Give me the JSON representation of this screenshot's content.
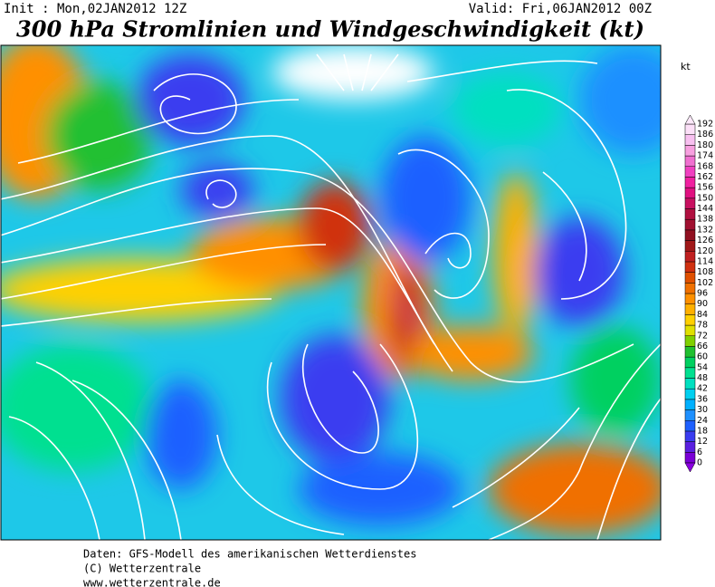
{
  "header": {
    "init": "Init : Mon,02JAN2012 12Z",
    "valid": "Valid: Fri,06JAN2012 00Z",
    "title": "300 hPa Stromlinien und Windgeschwindigkeit (kt)"
  },
  "colorbar": {
    "unit": "kt",
    "labels": [
      0,
      6,
      12,
      18,
      24,
      30,
      36,
      42,
      48,
      54,
      60,
      66,
      72,
      78,
      84,
      90,
      96,
      102,
      108,
      114,
      120,
      126,
      132,
      138,
      144,
      150,
      156,
      162,
      168,
      174,
      180,
      186,
      192
    ],
    "colors": [
      "#7a00d6",
      "#5a1fe0",
      "#3a3cf0",
      "#1e60ff",
      "#1e90ff",
      "#00b0ff",
      "#00d0f0",
      "#00e0c0",
      "#00e090",
      "#00d060",
      "#20c030",
      "#80d000",
      "#e0e000",
      "#ffd000",
      "#ffb000",
      "#ff9000",
      "#f07000",
      "#e05000",
      "#d03010",
      "#c02020",
      "#a01818",
      "#901020",
      "#a01030",
      "#b01040",
      "#c81060",
      "#e01080",
      "#f020a0",
      "#f040c0",
      "#f070d0",
      "#f8a0e0",
      "#f8c0f0",
      "#fce0f8"
    ],
    "under_color": "#8a00e0",
    "over_color": "#fce8fa"
  },
  "footer": {
    "lines": [
      "Daten: GFS-Modell des amerikanischen Wetterdienstes",
      "(C) Wetterzentrale",
      "www.wetterzentrale.de"
    ]
  }
}
